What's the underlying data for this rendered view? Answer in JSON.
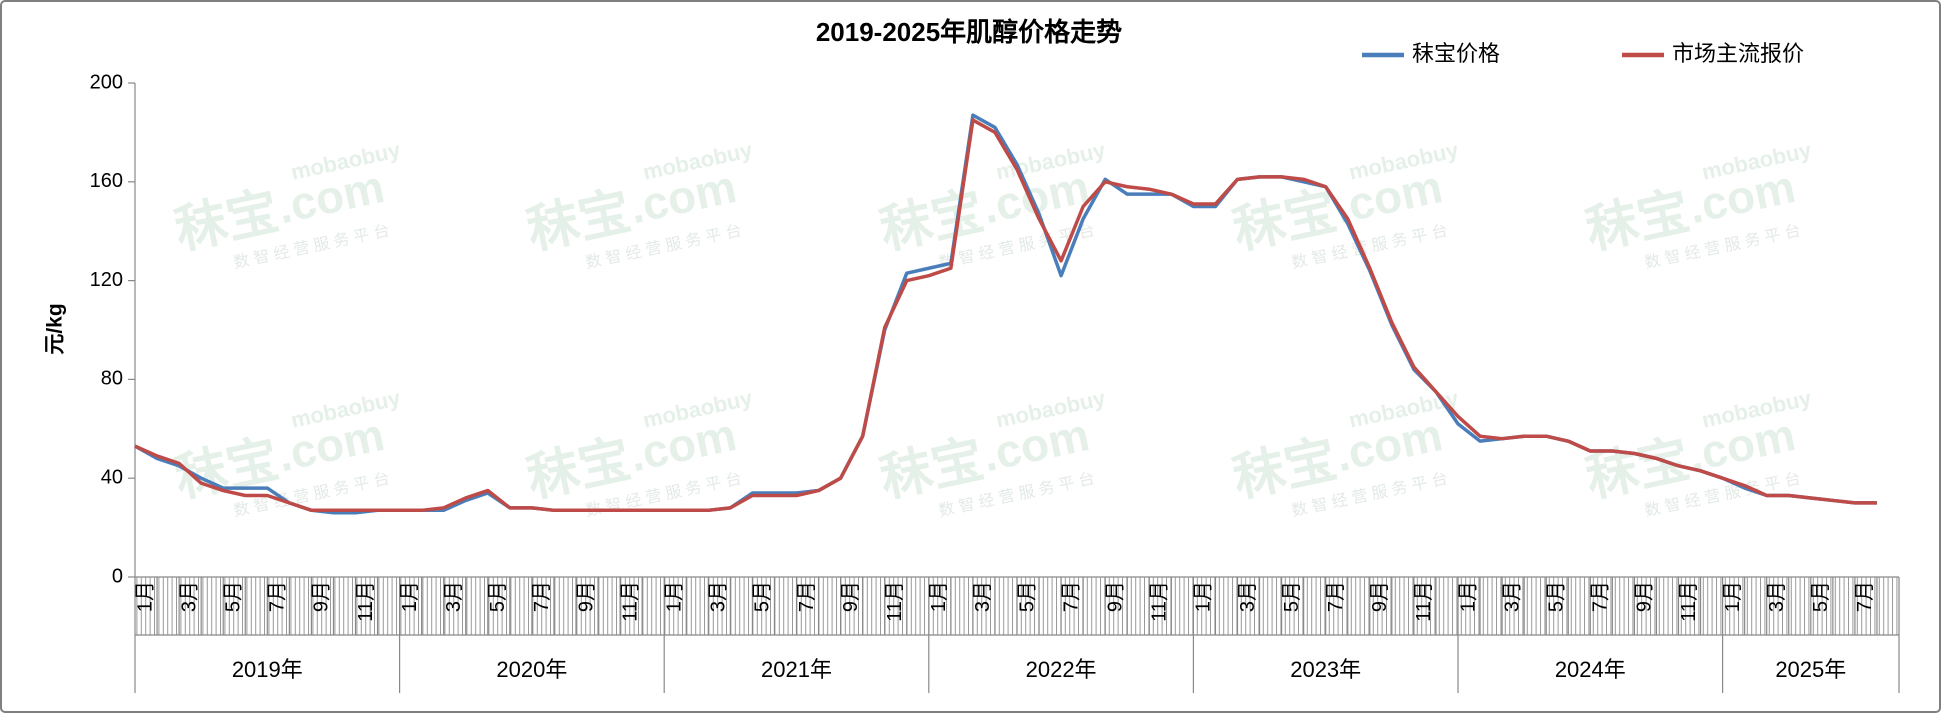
{
  "chart_data": {
    "type": "line",
    "title": "2019-2025年肌醇价格走势",
    "y_label": "元/kg",
    "ylim": [
      0,
      200
    ],
    "yticks": [
      0,
      40,
      80,
      120,
      160,
      200
    ],
    "grid": false,
    "legend": "top-right",
    "watermark": {
      "brand": "秣宝",
      "domain": ".com",
      "latin": "mobaobuy",
      "slogan": "数 智 经 营 服 务 平 台"
    },
    "x_groups": [
      "2019年",
      "2020年",
      "2021年",
      "2022年",
      "2023年",
      "2024年",
      "2025年"
    ],
    "categories": [
      "1月",
      null,
      "3月",
      null,
      "5月",
      null,
      "7月",
      null,
      "9月",
      null,
      "11月",
      null,
      "1月",
      null,
      "3月",
      null,
      "5月",
      null,
      "7月",
      null,
      "9月",
      null,
      "11月",
      null,
      "1月",
      null,
      "3月",
      null,
      "5月",
      null,
      "7月",
      null,
      "9月",
      null,
      "11月",
      null,
      "1月",
      null,
      "3月",
      null,
      "5月",
      null,
      "7月",
      null,
      "9月",
      null,
      "11月",
      null,
      "1月",
      null,
      "3月",
      null,
      "5月",
      null,
      "7月",
      null,
      "9月",
      null,
      "11月",
      null,
      "1月",
      null,
      "3月",
      null,
      "5月",
      null,
      "7月",
      null,
      "9月",
      null,
      "11月",
      null,
      "1月",
      null,
      "3月",
      null,
      "5月",
      null,
      "7月",
      null
    ],
    "series": [
      {
        "name": "秣宝价格",
        "color": "#4a7ebb",
        "values": [
          53,
          48,
          45,
          40,
          36,
          36,
          36,
          30,
          27,
          26,
          26,
          27,
          27,
          27,
          27,
          31,
          34,
          28,
          28,
          27,
          27,
          27,
          27,
          27,
          27,
          27,
          27,
          28,
          34,
          34,
          34,
          35,
          40,
          57,
          100,
          123,
          125,
          127,
          187,
          182,
          167,
          147,
          122,
          145,
          161,
          155,
          155,
          155,
          150,
          150,
          161,
          162,
          162,
          160,
          158,
          143,
          124,
          102,
          84,
          75,
          62,
          55,
          56,
          57,
          57,
          55,
          51,
          51,
          50,
          48,
          45,
          43,
          40,
          36,
          33,
          33,
          32,
          31,
          30,
          30
        ]
      },
      {
        "name": "市场主流报价",
        "color": "#be4b48",
        "values": [
          53,
          49,
          46,
          38,
          35,
          33,
          33,
          30,
          27,
          27,
          27,
          27,
          27,
          27,
          28,
          32,
          35,
          28,
          28,
          27,
          27,
          27,
          27,
          27,
          27,
          27,
          27,
          28,
          33,
          33,
          33,
          35,
          40,
          57,
          101,
          120,
          122,
          125,
          185,
          180,
          165,
          145,
          128,
          150,
          160,
          158,
          157,
          155,
          151,
          151,
          161,
          162,
          162,
          161,
          158,
          145,
          125,
          103,
          85,
          75,
          65,
          57,
          56,
          57,
          57,
          55,
          51,
          51,
          50,
          48,
          45,
          43,
          40,
          37,
          33,
          33,
          32,
          31,
          30,
          30
        ]
      }
    ]
  }
}
